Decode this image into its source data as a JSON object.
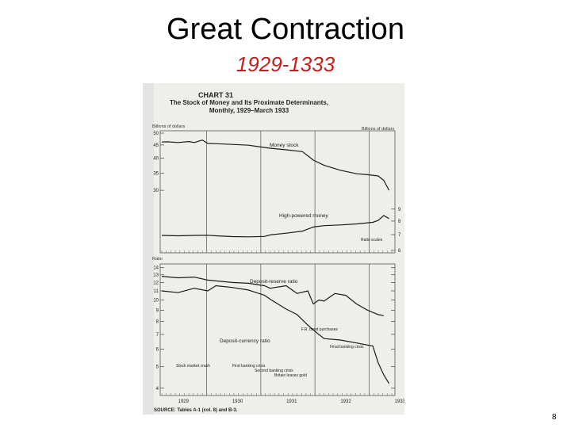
{
  "slide": {
    "title": "Great Contraction",
    "subtitle": "1929-1333",
    "page_number": "8",
    "subtitle_color": "#c0201e"
  },
  "chart_data": [
    {
      "type": "line",
      "chart_label": "CHART 31",
      "title": "The Stock of Money and Its Proximate Determinants, Monthly, 1929–March 1933",
      "panel": "upper",
      "ylabel_left": "Billions of dollars",
      "ylabel_right": "Billions of dollars",
      "yticks_left": [
        50,
        45,
        40,
        35,
        30
      ],
      "yticks_right": [
        9,
        8,
        7,
        6
      ],
      "scale_note": "Ratio scales",
      "series": [
        {
          "name": "Money stock",
          "axis": "left",
          "x": [
            1929.0,
            1929.1,
            1929.3,
            1929.5,
            1929.6,
            1929.75,
            1929.85,
            1930.0,
            1930.3,
            1930.6,
            1930.8,
            1931.0,
            1931.3,
            1931.6,
            1931.8,
            1932.0,
            1932.3,
            1932.6,
            1932.8,
            1933.0,
            1933.1,
            1933.2
          ],
          "values": [
            46.2,
            46.3,
            46.0,
            46.4,
            46.0,
            47.0,
            45.6,
            45.5,
            45.2,
            44.9,
            44.3,
            43.7,
            43.1,
            42.4,
            39.3,
            37.5,
            35.9,
            34.8,
            34.5,
            34.1,
            32.8,
            30.0
          ]
        },
        {
          "name": "High-powered money",
          "axis": "right",
          "x": [
            1929.0,
            1929.3,
            1929.6,
            1929.85,
            1930.0,
            1930.3,
            1930.6,
            1930.9,
            1931.0,
            1931.3,
            1931.6,
            1931.8,
            1932.0,
            1932.3,
            1932.6,
            1932.9,
            1933.0,
            1933.1,
            1933.2
          ],
          "values": [
            6.95,
            6.92,
            6.95,
            6.96,
            6.92,
            6.87,
            6.85,
            6.88,
            6.98,
            7.1,
            7.25,
            7.55,
            7.65,
            7.7,
            7.78,
            7.9,
            8.05,
            8.45,
            8.2
          ]
        }
      ]
    },
    {
      "type": "line",
      "panel": "lower",
      "ylabel": "Ratio",
      "yticks": [
        "14",
        "13",
        "12",
        "11",
        "10",
        "9",
        "8",
        "7",
        "6",
        "5",
        "4"
      ],
      "xticks": [
        "1929",
        "1930",
        "1931",
        "1932",
        "1933"
      ],
      "series": [
        {
          "name": "Deposit-reserve ratio",
          "x": [
            1929.0,
            1929.3,
            1929.6,
            1929.85,
            1930.0,
            1930.3,
            1930.6,
            1930.9,
            1931.0,
            1931.3,
            1931.5,
            1931.7,
            1931.8,
            1931.9,
            1932.0,
            1932.2,
            1932.4,
            1932.6,
            1932.8,
            1933.0,
            1933.1
          ],
          "values": [
            12.8,
            12.6,
            12.7,
            12.3,
            12.2,
            12.0,
            11.9,
            11.6,
            11.3,
            11.6,
            10.7,
            11.0,
            9.6,
            10.0,
            9.9,
            10.7,
            10.5,
            9.6,
            9.0,
            8.6,
            8.5
          ]
        },
        {
          "name": "Deposit-currency ratio",
          "x": [
            1929.0,
            1929.3,
            1929.6,
            1929.85,
            1930.0,
            1930.3,
            1930.6,
            1930.9,
            1931.0,
            1931.3,
            1931.5,
            1931.7,
            1931.9,
            1932.0,
            1932.3,
            1932.6,
            1932.9,
            1933.0,
            1933.1,
            1933.2
          ],
          "values": [
            11.0,
            10.8,
            11.3,
            11.0,
            11.6,
            11.4,
            11.1,
            10.5,
            10.1,
            9.1,
            8.6,
            7.7,
            7.0,
            6.7,
            6.6,
            6.4,
            6.2,
            5.2,
            4.6,
            4.2
          ]
        }
      ],
      "annotations": [
        "Stock market crash",
        "First banking crisis",
        "Second banking crisis",
        "Britain leaves gold",
        "F.R. bond purchases",
        "Final banking crisis"
      ],
      "source": "SOURCE: Tables A-1 (col. 8) and B-3."
    }
  ]
}
